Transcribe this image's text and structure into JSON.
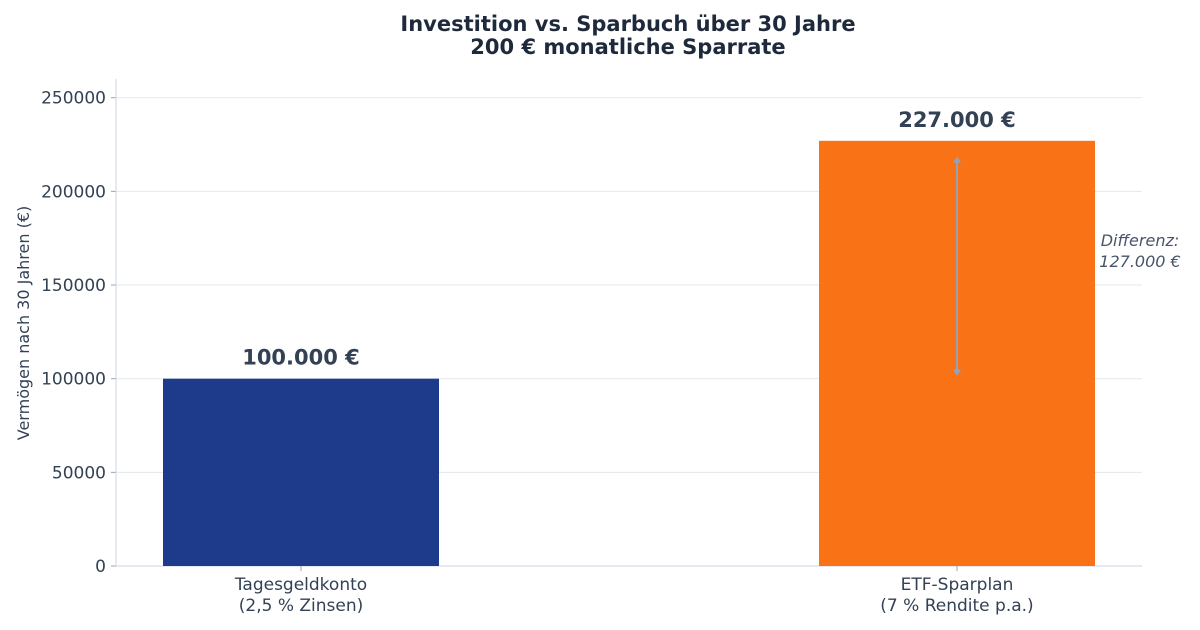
{
  "chart_data": {
    "type": "bar",
    "title": "Investition vs. Sparbuch über 30 Jahre",
    "subtitle": "200 € monatliche Sparrate",
    "xlabel": "",
    "ylabel": "Vermögen nach 30 Jahren (€)",
    "ylim": [
      0,
      260000
    ],
    "yticks": [
      0,
      50000,
      100000,
      150000,
      200000,
      250000
    ],
    "grid": true,
    "categories": [
      [
        "Tagesgeldkonto",
        "(2,5 % Zinsen)"
      ],
      [
        "ETF-Sparplan",
        "(7 % Rendite p.a.)"
      ]
    ],
    "values": [
      100000,
      227000
    ],
    "value_labels": [
      "100.000 €",
      "227.000 €"
    ],
    "colors": [
      "#1e3a8a",
      "#f97316"
    ],
    "annotation": {
      "from": 100000,
      "to": 227000,
      "lines": [
        "Differenz:",
        "127.000 €"
      ],
      "color": "#94a3b8"
    }
  }
}
